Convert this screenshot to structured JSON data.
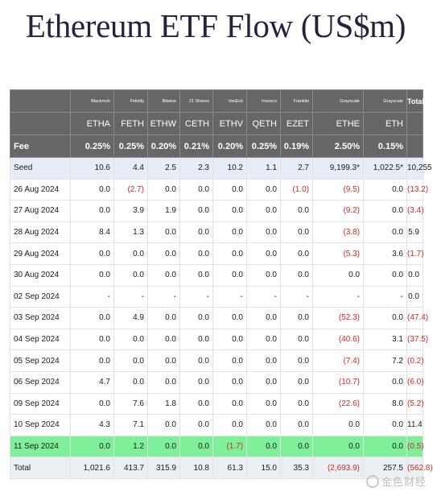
{
  "title": "Ethereum ETF Flow (US$m)",
  "header": {
    "issuers": [
      "Blackrock",
      "Fidelity",
      "Bitwise",
      "21 Shares",
      "VanEck",
      "Invesco",
      "Franklin",
      "Grayscale",
      "Grayscale"
    ],
    "total_label": "Total",
    "tickers": [
      "ETHA",
      "FETH",
      "ETHW",
      "CETH",
      "ETHV",
      "QETH",
      "EZET",
      "ETHE",
      "ETH"
    ],
    "fee_label": "Fee",
    "fees": [
      "0.25%",
      "0.25%",
      "0.20%",
      "0.21%",
      "0.20%",
      "0.25%",
      "0.19%",
      "2.50%",
      "0.15%"
    ]
  },
  "rows": [
    {
      "label": "Seed",
      "values": [
        "10.6",
        "4.4",
        "2.5",
        "2.3",
        "10.2",
        "1.1",
        "2.7",
        "9,199.3*",
        "1,022.5*",
        "10,255"
      ]
    },
    {
      "label": "26 Aug 2024",
      "values": [
        "0.0",
        "(2.7)",
        "0.0",
        "0.0",
        "0.0",
        "0.0",
        "(1.0)",
        "(9.5)",
        "0.0",
        "(13.2)"
      ]
    },
    {
      "label": "27 Aug 2024",
      "values": [
        "0.0",
        "3.9",
        "1.9",
        "0.0",
        "0.0",
        "0.0",
        "0.0",
        "(9.2)",
        "0.0",
        "(3.4)"
      ]
    },
    {
      "label": "28 Aug 2024",
      "values": [
        "8.4",
        "1.3",
        "0.0",
        "0.0",
        "0.0",
        "0.0",
        "0.0",
        "(3.8)",
        "0.0",
        "5.9"
      ]
    },
    {
      "label": "29 Aug 2024",
      "values": [
        "0.0",
        "0.0",
        "0.0",
        "0.0",
        "0.0",
        "0.0",
        "0.0",
        "(5.3)",
        "3.6",
        "(1.7)"
      ]
    },
    {
      "label": "30 Aug 2024",
      "values": [
        "0.0",
        "0.0",
        "0.0",
        "0.0",
        "0.0",
        "0.0",
        "0.0",
        "0.0",
        "0.0",
        "0.0"
      ]
    },
    {
      "label": "02 Sep 2024",
      "values": [
        "-",
        "-",
        "-",
        "-",
        "-",
        "-",
        "-",
        "-",
        "-",
        "0.0"
      ]
    },
    {
      "label": "03 Sep 2024",
      "values": [
        "0.0",
        "4.9",
        "0.0",
        "0.0",
        "0.0",
        "0.0",
        "0.0",
        "(52.3)",
        "0.0",
        "(47.4)"
      ]
    },
    {
      "label": "04 Sep 2024",
      "values": [
        "0.0",
        "0.0",
        "0.0",
        "0.0",
        "0.0",
        "0.0",
        "0.0",
        "(40.6)",
        "3.1",
        "(37.5)"
      ]
    },
    {
      "label": "05 Sep 2024",
      "values": [
        "0.0",
        "0.0",
        "0.0",
        "0.0",
        "0.0",
        "0.0",
        "0.0",
        "(7.4)",
        "7.2",
        "(0.2)"
      ]
    },
    {
      "label": "06 Sep 2024",
      "values": [
        "4.7",
        "0.0",
        "0.0",
        "0.0",
        "0.0",
        "0.0",
        "0.0",
        "(10.7)",
        "0.0",
        "(6.0)"
      ]
    },
    {
      "label": "09 Sep 2024",
      "values": [
        "0.0",
        "7.6",
        "1.8",
        "0.0",
        "0.0",
        "0.0",
        "0.0",
        "(22.6)",
        "8.0",
        "(5.2)"
      ]
    },
    {
      "label": "10 Sep 2024",
      "values": [
        "4.3",
        "7.1",
        "0.0",
        "0.0",
        "0.0",
        "0.0",
        "0.0",
        "0.0",
        "0.0",
        "11.4"
      ]
    },
    {
      "label": "11 Sep 2024",
      "values": [
        "0.0",
        "1.2",
        "0.0",
        "0.0",
        "(1.7)",
        "0.0",
        "0.0",
        "0.0",
        "0.0",
        "(0.5)"
      ]
    }
  ],
  "total_row": {
    "label": "Total",
    "values": [
      "1,021.6",
      "413.7",
      "315.9",
      "10.8",
      "61.3",
      "15.0",
      "35.3",
      "(2,693.9)",
      "257.5",
      "(562.8)"
    ]
  },
  "watermark": "金色财经"
}
